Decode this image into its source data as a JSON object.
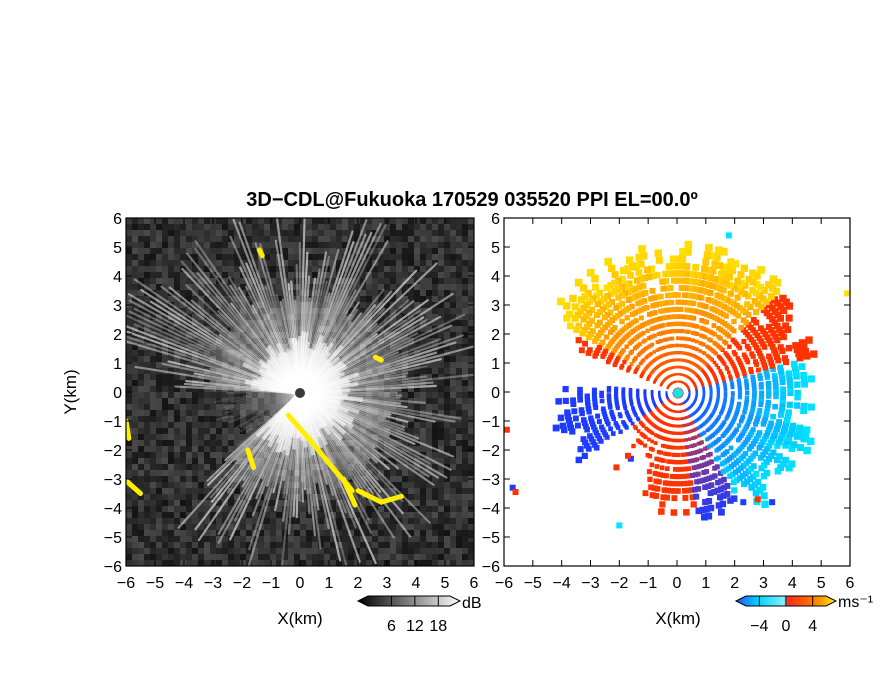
{
  "title": "3D−CDL@Fukuoka 170529 035520 PPI EL=00.0º",
  "colors": {
    "ppi_dark": "#141414",
    "highlight": "#ffee00",
    "vel_neg_strong": "#1e3cff",
    "vel_neg_weak": "#00e5ff",
    "vel_pos_weak": "#ffe000",
    "vel_pos_strong": "#ff3300"
  },
  "chart_data": [
    {
      "type": "heatmap",
      "panel": "reflectivity",
      "xlabel": "X(km)",
      "ylabel": "Y(km)",
      "xlim": [
        -6,
        6
      ],
      "ylim": [
        -6,
        6
      ],
      "x_ticks": [
        -6,
        -5,
        -4,
        -3,
        -2,
        -1,
        0,
        1,
        2,
        3,
        4,
        5,
        6
      ],
      "y_ticks": [
        -6,
        -5,
        -4,
        -3,
        -2,
        -1,
        0,
        1,
        2,
        3,
        4,
        5,
        6
      ],
      "tick_labels": [
        "−6",
        "−5",
        "−4",
        "−3",
        "−2",
        "−1",
        "0",
        "1",
        "2",
        "3",
        "4",
        "5",
        "6"
      ],
      "colorbar": {
        "unit": "dB",
        "tick_values": [
          6,
          12,
          18
        ],
        "tick_labels": [
          "6",
          "12",
          "18"
        ],
        "range": [
          0,
          21
        ]
      },
      "highlight_segments": [
        [
          [
            -6.0,
            -1.0
          ],
          [
            -5.9,
            -1.6
          ]
        ],
        [
          [
            -5.95,
            -3.1
          ],
          [
            -5.5,
            -3.5
          ]
        ],
        [
          [
            -0.4,
            -0.8
          ],
          [
            0.3,
            -1.6
          ]
        ],
        [
          [
            0.3,
            -1.6
          ],
          [
            1.2,
            -2.7
          ]
        ],
        [
          [
            1.2,
            -2.7
          ],
          [
            1.8,
            -3.4
          ]
        ],
        [
          [
            1.5,
            -3.0
          ],
          [
            1.9,
            -3.9
          ]
        ],
        [
          [
            2.0,
            -3.4
          ],
          [
            2.8,
            -3.8
          ]
        ],
        [
          [
            2.8,
            -3.8
          ],
          [
            3.5,
            -3.6
          ]
        ],
        [
          [
            -1.8,
            -2.0
          ],
          [
            -1.6,
            -2.6
          ]
        ],
        [
          [
            2.6,
            1.2
          ],
          [
            2.8,
            1.1
          ]
        ],
        [
          [
            -1.4,
            4.9
          ],
          [
            -1.3,
            4.7
          ]
        ]
      ]
    },
    {
      "type": "heatmap",
      "panel": "velocity",
      "xlabel": "X(km)",
      "xlim": [
        -6,
        6
      ],
      "ylim": [
        -6,
        6
      ],
      "x_ticks": [
        -6,
        -5,
        -4,
        -3,
        -2,
        -1,
        0,
        1,
        2,
        3,
        4,
        5,
        6
      ],
      "y_ticks": [
        -6,
        -5,
        -4,
        -3,
        -2,
        -1,
        0,
        1,
        2,
        3,
        4,
        5,
        6
      ],
      "tick_labels": [
        "−6",
        "−5",
        "−4",
        "−3",
        "−2",
        "−1",
        "0",
        "1",
        "2",
        "3",
        "4",
        "5",
        "6"
      ],
      "colorbar": {
        "unit": "ms⁻¹",
        "tick_values": [
          -4,
          0,
          4
        ],
        "tick_labels": [
          "−4",
          "0",
          "4"
        ],
        "range": [
          -6,
          6
        ]
      }
    }
  ]
}
